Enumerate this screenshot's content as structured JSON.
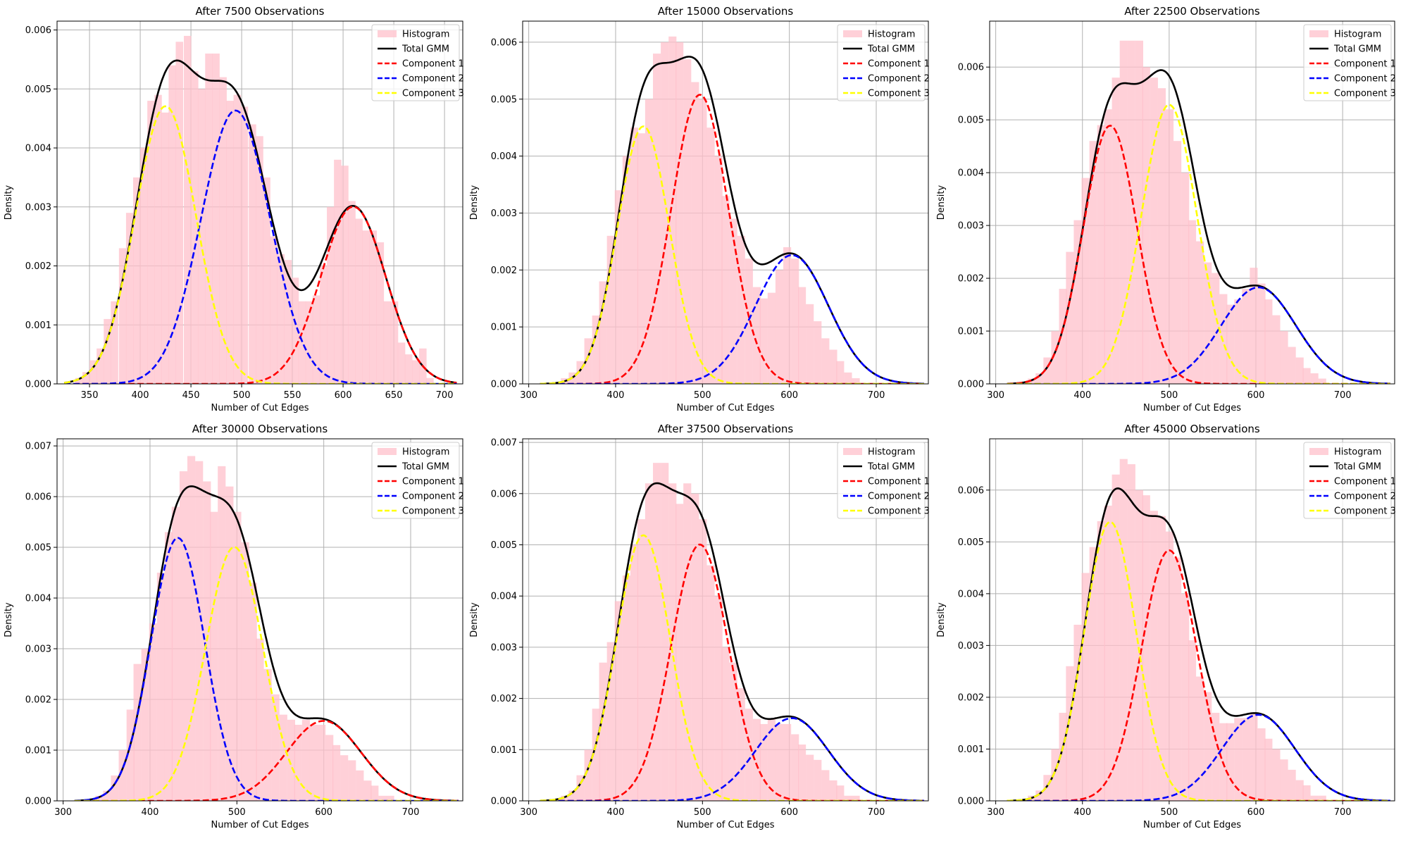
{
  "chart_data": [
    {
      "type": "histogram+line",
      "title": "After 7500 Observations",
      "xlabel": "Number of Cut Edges",
      "ylabel": "Density",
      "xlim": [
        318,
        718
      ],
      "ylim": [
        0,
        0.00615
      ],
      "xticks": [
        350,
        400,
        450,
        500,
        550,
        600,
        650,
        700
      ],
      "yticks": [
        0.0,
        0.001,
        0.002,
        0.003,
        0.004,
        0.005,
        0.006
      ],
      "ytick_decimals": 3,
      "grid": true,
      "legend_location": "upper right",
      "legend": [
        "Histogram",
        "Total GMM",
        "Component 1",
        "Component 2",
        "Component 3"
      ],
      "curve_range": [
        325,
        712
      ],
      "histogram": {
        "color": "#ffc0cb",
        "bin_width": 7.1,
        "bin_starts": [
          336,
          343,
          350,
          357,
          364,
          371,
          379,
          386,
          393,
          400,
          407,
          414,
          421,
          428,
          435,
          443,
          450,
          457,
          464,
          471,
          478,
          485,
          492,
          499,
          507,
          514,
          521,
          528,
          535,
          542,
          549,
          556,
          563,
          570,
          577,
          584,
          591,
          598,
          605,
          612,
          619,
          626,
          633,
          640,
          647,
          654,
          661,
          668,
          675,
          682
        ],
        "values": [
          0.0001,
          0.0002,
          0.0004,
          0.0006,
          0.0011,
          0.0014,
          0.0023,
          0.0029,
          0.0035,
          0.004,
          0.0048,
          0.0049,
          0.0046,
          0.0054,
          0.0058,
          0.0059,
          0.0053,
          0.005,
          0.0056,
          0.0056,
          0.0052,
          0.0048,
          0.0049,
          0.0047,
          0.0044,
          0.0042,
          0.0035,
          0.0025,
          0.0022,
          0.0021,
          0.0018,
          0.0014,
          0.0014,
          0.0015,
          0.002,
          0.003,
          0.0038,
          0.0037,
          0.0031,
          0.0028,
          0.0026,
          0.0026,
          0.0024,
          0.0014,
          0.0014,
          0.0007,
          0.0005,
          0.0004,
          0.0006,
          0.0001
        ]
      },
      "components": [
        {
          "name": "Component 1",
          "color": "#ff0000",
          "mu": 610,
          "sigma": 32,
          "weight": 0.241
        },
        {
          "name": "Component 2",
          "color": "#0000ff",
          "mu": 494,
          "sigma": 34,
          "weight": 0.395
        },
        {
          "name": "Component 3",
          "color": "#ffff00",
          "mu": 425,
          "sigma": 30,
          "weight": 0.354
        }
      ]
    },
    {
      "type": "histogram+line",
      "title": "After 15000 Observations",
      "xlabel": "Number of Cut Edges",
      "ylabel": "Density",
      "xlim": [
        293,
        760
      ],
      "ylim": [
        0,
        0.00637
      ],
      "xticks": [
        300,
        400,
        500,
        600,
        700
      ],
      "yticks": [
        0.0,
        0.001,
        0.002,
        0.003,
        0.004,
        0.005,
        0.006
      ],
      "ytick_decimals": 3,
      "grid": true,
      "legend_location": "upper right",
      "legend": [
        "Histogram",
        "Total GMM",
        "Component 1",
        "Component 2",
        "Component 3"
      ],
      "curve_range": [
        313,
        755
      ],
      "histogram": {
        "color": "#ffc0cb",
        "bin_width": 8.8,
        "bin_starts": [
          337,
          346,
          355,
          364,
          373,
          381,
          390,
          399,
          408,
          417,
          425,
          434,
          443,
          452,
          461,
          469,
          478,
          487,
          496,
          505,
          514,
          522,
          531,
          540,
          549,
          558,
          566,
          575,
          584,
          593,
          602,
          610,
          619,
          628,
          637,
          646,
          654,
          663,
          672
        ],
        "values": [
          0.0001,
          0.0002,
          0.0004,
          0.0008,
          0.0012,
          0.0018,
          0.0026,
          0.0034,
          0.004,
          0.0045,
          0.0044,
          0.005,
          0.0058,
          0.006,
          0.0061,
          0.006,
          0.0057,
          0.0053,
          0.005,
          0.0045,
          0.004,
          0.0033,
          0.0029,
          0.0026,
          0.0022,
          0.0017,
          0.0015,
          0.0016,
          0.002,
          0.0024,
          0.0022,
          0.0017,
          0.0014,
          0.0011,
          0.0008,
          0.0006,
          0.0004,
          0.0002,
          0.0001
        ]
      },
      "components": [
        {
          "name": "Component 1",
          "color": "#ff0000",
          "mu": 497,
          "sigma": 33,
          "weight": 0.42
        },
        {
          "name": "Component 2",
          "color": "#0000ff",
          "mu": 603,
          "sigma": 42,
          "weight": 0.238
        },
        {
          "name": "Component 3",
          "color": "#ffff00",
          "mu": 432,
          "sigma": 30,
          "weight": 0.34
        }
      ]
    },
    {
      "type": "histogram+line",
      "title": "After 22500 Observations",
      "xlabel": "Number of Cut Edges",
      "ylabel": "Density",
      "xlim": [
        293,
        760
      ],
      "ylim": [
        0,
        0.00687
      ],
      "xticks": [
        300,
        400,
        500,
        600,
        700
      ],
      "yticks": [
        0.0,
        0.001,
        0.002,
        0.003,
        0.004,
        0.005,
        0.006
      ],
      "ytick_decimals": 3,
      "grid": true,
      "legend_location": "upper right",
      "legend": [
        "Histogram",
        "Total GMM",
        "Component 1",
        "Component 2",
        "Component 3"
      ],
      "curve_range": [
        313,
        755
      ],
      "histogram": {
        "color": "#ffc0cb",
        "bin_width": 8.8,
        "bin_starts": [
          337,
          346,
          355,
          364,
          373,
          381,
          390,
          399,
          408,
          417,
          425,
          434,
          443,
          452,
          461,
          469,
          478,
          487,
          496,
          505,
          514,
          522,
          531,
          540,
          549,
          558,
          566,
          575,
          584,
          593,
          602,
          610,
          619,
          628,
          637,
          646,
          654,
          663,
          672
        ],
        "values": [
          0.0001,
          0.0002,
          0.0005,
          0.001,
          0.0018,
          0.0025,
          0.0031,
          0.0039,
          0.0046,
          0.0049,
          0.0052,
          0.0058,
          0.0065,
          0.0065,
          0.0065,
          0.006,
          0.0058,
          0.0056,
          0.0052,
          0.0046,
          0.004,
          0.0031,
          0.0027,
          0.0023,
          0.0021,
          0.0017,
          0.0015,
          0.0016,
          0.0018,
          0.0022,
          0.0019,
          0.0016,
          0.0013,
          0.001,
          0.0007,
          0.0005,
          0.0003,
          0.0002,
          0.0001
        ]
      },
      "components": [
        {
          "name": "Component 1",
          "color": "#ff0000",
          "mu": 432,
          "sigma": 31,
          "weight": 0.38
        },
        {
          "name": "Component 2",
          "color": "#0000ff",
          "mu": 603,
          "sigma": 43,
          "weight": 0.197
        },
        {
          "name": "Component 3",
          "color": "#ffff00",
          "mu": 500,
          "sigma": 32,
          "weight": 0.424
        }
      ]
    },
    {
      "type": "histogram+line",
      "title": "After 30000 Observations",
      "xlabel": "Number of Cut Edges",
      "ylabel": "Density",
      "xlim": [
        293,
        760
      ],
      "ylim": [
        0,
        0.00714
      ],
      "xticks": [
        300,
        400,
        500,
        600,
        700
      ],
      "yticks": [
        0.0,
        0.001,
        0.002,
        0.003,
        0.004,
        0.005,
        0.006,
        0.007
      ],
      "ytick_decimals": 3,
      "grid": true,
      "legend_location": "upper right",
      "legend": [
        "Histogram",
        "Total GMM",
        "Component 1",
        "Component 2",
        "Component 3"
      ],
      "curve_range": [
        313,
        755
      ],
      "histogram": {
        "color": "#ffc0cb",
        "bin_width": 8.8,
        "bin_starts": [
          337,
          346,
          355,
          364,
          373,
          381,
          390,
          399,
          408,
          417,
          425,
          434,
          443,
          452,
          461,
          469,
          478,
          487,
          496,
          505,
          514,
          522,
          531,
          540,
          549,
          558,
          566,
          575,
          584,
          593,
          602,
          610,
          619,
          628,
          637,
          646,
          654,
          663,
          672
        ],
        "values": [
          0.0001,
          0.0002,
          0.0005,
          0.001,
          0.0018,
          0.0027,
          0.003,
          0.0035,
          0.0045,
          0.0053,
          0.0058,
          0.0065,
          0.0068,
          0.0067,
          0.0063,
          0.0057,
          0.0066,
          0.0062,
          0.0057,
          0.0051,
          0.0043,
          0.0032,
          0.0026,
          0.0021,
          0.0017,
          0.0016,
          0.0015,
          0.0016,
          0.0015,
          0.0015,
          0.0013,
          0.0011,
          0.0009,
          0.0008,
          0.0006,
          0.0004,
          0.0003,
          0.0001,
          0.0001
        ]
      },
      "components": [
        {
          "name": "Component 1",
          "color": "#ff0000",
          "mu": 600,
          "sigma": 43,
          "weight": 0.17
        },
        {
          "name": "Component 2",
          "color": "#0000ff",
          "mu": 432,
          "sigma": 31,
          "weight": 0.403
        },
        {
          "name": "Component 3",
          "color": "#ffff00",
          "mu": 497,
          "sigma": 33,
          "weight": 0.414
        }
      ]
    },
    {
      "type": "histogram+line",
      "title": "After 37500 Observations",
      "xlabel": "Number of Cut Edges",
      "ylabel": "Density",
      "xlim": [
        293,
        760
      ],
      "ylim": [
        0,
        0.00707
      ],
      "xticks": [
        300,
        400,
        500,
        600,
        700
      ],
      "yticks": [
        0.0,
        0.001,
        0.002,
        0.003,
        0.004,
        0.005,
        0.006,
        0.007
      ],
      "ytick_decimals": 3,
      "grid": true,
      "legend_location": "upper right",
      "legend": [
        "Histogram",
        "Total GMM",
        "Component 1",
        "Component 2",
        "Component 3"
      ],
      "curve_range": [
        313,
        755
      ],
      "histogram": {
        "color": "#ffc0cb",
        "bin_width": 8.8,
        "bin_starts": [
          337,
          346,
          355,
          364,
          373,
          381,
          390,
          399,
          408,
          417,
          425,
          434,
          443,
          452,
          461,
          469,
          478,
          487,
          496,
          505,
          514,
          522,
          531,
          540,
          549,
          558,
          566,
          575,
          584,
          593,
          602,
          610,
          619,
          628,
          637,
          646,
          654,
          663,
          672
        ],
        "values": [
          0.0001,
          0.0002,
          0.0005,
          0.001,
          0.0018,
          0.0027,
          0.0031,
          0.0039,
          0.0044,
          0.005,
          0.0055,
          0.0062,
          0.0066,
          0.0066,
          0.0062,
          0.0058,
          0.0062,
          0.006,
          0.0055,
          0.0046,
          0.004,
          0.003,
          0.0027,
          0.0022,
          0.0018,
          0.0016,
          0.0015,
          0.0016,
          0.0015,
          0.0015,
          0.0013,
          0.0011,
          0.0009,
          0.0008,
          0.0006,
          0.0004,
          0.0003,
          0.0001,
          0.0001
        ]
      },
      "components": [
        {
          "name": "Component 1",
          "color": "#ff0000",
          "mu": 497,
          "sigma": 33,
          "weight": 0.414
        },
        {
          "name": "Component 2",
          "color": "#0000ff",
          "mu": 603,
          "sigma": 42,
          "weight": 0.17
        },
        {
          "name": "Component 3",
          "color": "#ffff00",
          "mu": 432,
          "sigma": 31,
          "weight": 0.403
        }
      ]
    },
    {
      "type": "histogram+line",
      "title": "After 45000 Observations",
      "xlabel": "Number of Cut Edges",
      "ylabel": "Density",
      "xlim": [
        293,
        760
      ],
      "ylim": [
        0,
        0.00699
      ],
      "xticks": [
        300,
        400,
        500,
        600,
        700
      ],
      "yticks": [
        0.0,
        0.001,
        0.002,
        0.003,
        0.004,
        0.005,
        0.006
      ],
      "ytick_decimals": 3,
      "grid": true,
      "legend_location": "upper right",
      "legend": [
        "Histogram",
        "Total GMM",
        "Component 1",
        "Component 2",
        "Component 3"
      ],
      "curve_range": [
        313,
        755
      ],
      "histogram": {
        "color": "#ffc0cb",
        "bin_width": 8.8,
        "bin_starts": [
          337,
          346,
          355,
          364,
          373,
          381,
          390,
          399,
          408,
          417,
          425,
          434,
          443,
          452,
          461,
          469,
          478,
          487,
          496,
          505,
          514,
          522,
          531,
          540,
          549,
          558,
          566,
          575,
          584,
          593,
          602,
          610,
          619,
          628,
          637,
          646,
          654,
          663,
          672
        ],
        "values": [
          0.0001,
          0.0002,
          0.0005,
          0.001,
          0.0017,
          0.0026,
          0.0034,
          0.0044,
          0.0049,
          0.0054,
          0.0057,
          0.0063,
          0.0066,
          0.0065,
          0.006,
          0.0059,
          0.0056,
          0.0055,
          0.0052,
          0.0047,
          0.004,
          0.0031,
          0.0024,
          0.0021,
          0.0017,
          0.0015,
          0.0015,
          0.0016,
          0.0016,
          0.0017,
          0.0014,
          0.0012,
          0.001,
          0.0008,
          0.0006,
          0.0004,
          0.0003,
          0.0001,
          0.0001
        ]
      },
      "components": [
        {
          "name": "Component 1",
          "color": "#ff0000",
          "mu": 500,
          "sigma": 32,
          "weight": 0.388
        },
        {
          "name": "Component 2",
          "color": "#0000ff",
          "mu": 603,
          "sigma": 42,
          "weight": 0.175
        },
        {
          "name": "Component 3",
          "color": "#ffff00",
          "mu": 432,
          "sigma": 30,
          "weight": 0.405
        }
      ]
    }
  ]
}
